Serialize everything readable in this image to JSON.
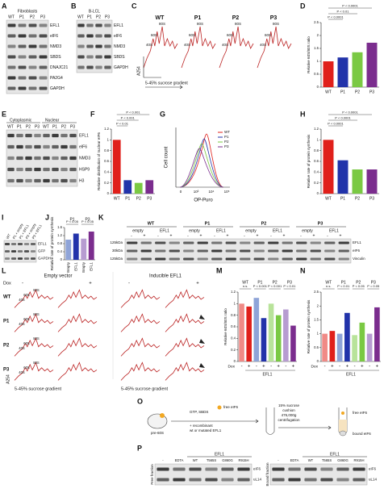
{
  "panel_letters": [
    "A",
    "B",
    "C",
    "D",
    "E",
    "F",
    "G",
    "H",
    "I",
    "J",
    "K",
    "L",
    "M",
    "N",
    "O",
    "P"
  ],
  "A": {
    "title": "Fibroblasts",
    "lanes": [
      "WT",
      "P1",
      "P2",
      "P3"
    ],
    "bands": [
      "EFL1",
      "eIF6",
      "NMD3",
      "SBDS",
      "DNAJC21",
      "PA2G4",
      "GAPDH"
    ]
  },
  "B": {
    "title": "B-LCL",
    "lanes": [
      "WT",
      "P1",
      "P2",
      "P3"
    ],
    "bands": [
      "EFL1",
      "eIF6",
      "NMD3",
      "SBDS",
      "GAPDH"
    ]
  },
  "C": {
    "samples": [
      "WT",
      "P1",
      "P2",
      "P3"
    ],
    "peaks": [
      "80S",
      "60S",
      "40S"
    ],
    "y_label": "A254",
    "x_label": "5-45% sucrose gradient"
  },
  "E": {
    "groups": [
      "Cytoplasmic",
      "Nuclear"
    ],
    "lanes": [
      "WT",
      "P1",
      "P2",
      "P3"
    ],
    "bands": [
      "EFL1",
      "eIF6",
      "NMD3",
      "HSP9",
      "H3"
    ]
  },
  "G": {
    "y_label": "Cell count",
    "x_label": "OP-Puro",
    "legend": [
      "WT",
      "P1",
      "P2",
      "P3"
    ],
    "xticks": [
      "0",
      "10³",
      "10⁴",
      "10⁵"
    ]
  },
  "I": {
    "lanes": [
      "WT",
      "P1 + empty",
      "P1 + EFL1",
      "P3 + empty",
      "P3 + EFL1"
    ],
    "bands": [
      "EFL1",
      "GFP",
      "GAPDH"
    ]
  },
  "K": {
    "groups": [
      "WT",
      "P1",
      "P2",
      "P3"
    ],
    "constructs": [
      "empty",
      "EFL1"
    ],
    "dox": [
      "-",
      "+"
    ],
    "markers": [
      "125kDa",
      "30kDa",
      "125kDa"
    ],
    "bands": [
      "EFL1",
      "eIF6",
      "Vinculin"
    ]
  },
  "L": {
    "columns": [
      "Empty vector",
      "Inducible EFL1"
    ],
    "dox_label": "Dox",
    "dox": [
      "-",
      "+"
    ],
    "rows": [
      "WT",
      "P1",
      "P2",
      "P3"
    ],
    "peaks": [
      "80S",
      "60S",
      "40S"
    ],
    "y_label": "A254",
    "x_label": "5-45% sucrose gradient"
  },
  "O": {
    "labels": [
      "free eIF6",
      "GTP, SBDS",
      "+ recombinant",
      "wt or mutated EFL1",
      "pre-60S",
      "15% sucrose",
      "cushion",
      "476,000g",
      "centrifugation",
      "free eIF6",
      "bound eIF6"
    ]
  },
  "P": {
    "title": "EFL1",
    "lanes": [
      "-",
      "EDTA",
      "WT",
      "T565S",
      "G860G",
      "R915H"
    ],
    "fractions": [
      "Free fraction",
      "Bound fraction"
    ],
    "bands": [
      "eIF6",
      "uL14"
    ]
  },
  "chart_data": [
    {
      "type": "bar",
      "y_label": "Relative 60S/80S ratio",
      "categories": [
        "WT",
        "P1",
        "P2",
        "P3"
      ],
      "values": [
        1.0,
        1.15,
        1.35,
        1.72
      ],
      "colors": [
        "#e0201b",
        "#2233aa",
        "#7ac943",
        "#7b2d8e"
      ],
      "ylim": [
        0,
        2.5
      ],
      "yticks": [
        0,
        0.5,
        1,
        1.5,
        2,
        2.5
      ],
      "annotations": [
        "P < 0.0001",
        "P < 0.01",
        "P < 0.0001"
      ]
    },
    {
      "type": "bar",
      "y_label": "Relative distribution of nuclear eIF6",
      "categories": [
        "WT",
        "P1",
        "P2",
        "P3"
      ],
      "values": [
        1.0,
        0.25,
        0.2,
        0.25
      ],
      "colors": [
        "#e0201b",
        "#2233aa",
        "#7ac943",
        "#7b2d8e"
      ],
      "ylim": [
        0,
        1.2
      ],
      "yticks": [
        0,
        0.2,
        0.4,
        0.6,
        0.8,
        1,
        1.2
      ],
      "annotations": [
        "P < 0.01",
        "P < 0.001",
        "P < 0.001"
      ]
    },
    {
      "type": "bar",
      "y_label": "Relative rate of protein synthesis",
      "categories": [
        "WT",
        "P1",
        "P2",
        "P3"
      ],
      "values": [
        1.0,
        0.62,
        0.45,
        0.45
      ],
      "colors": [
        "#e0201b",
        "#2233aa",
        "#7ac943",
        "#7b2d8e"
      ],
      "ylim": [
        0,
        1.2
      ],
      "yticks": [
        0,
        0.2,
        0.4,
        0.6,
        0.8,
        1,
        1.2
      ],
      "annotations": [
        "P < 0.0001",
        "P < 0.0001",
        "P < 0.0001"
      ]
    },
    {
      "type": "bar",
      "y_label": "Relative rate of protein synthesis",
      "categories": [
        "Empty",
        "EFL1",
        "Empty",
        "EFL1"
      ],
      "groups": [
        "P1",
        "P3"
      ],
      "values": [
        1.0,
        1.3,
        1.05,
        1.4
      ],
      "colors": [
        "#8fa4d8",
        "#2233aa",
        "#b79cd1",
        "#7b2d8e"
      ],
      "ylim": [
        0,
        1.6
      ],
      "yticks": [
        0,
        0.4,
        0.8,
        1.2,
        1.6
      ],
      "annotations": [
        "P < 0.05",
        "P < 0.05"
      ]
    },
    {
      "type": "bar",
      "y_label": "Relative 60S/80S ratio",
      "categories": [
        "-",
        "+",
        "-",
        "+",
        "-",
        "+",
        "-",
        "+"
      ],
      "groups": [
        "WT",
        "P1",
        "P2",
        "P3"
      ],
      "x_label": "Dox",
      "footer": "EFL1",
      "values": [
        1.0,
        0.95,
        1.1,
        0.75,
        1.0,
        0.8,
        0.9,
        0.62
      ],
      "colors": [
        "#f08a86",
        "#e0201b",
        "#8fa4d8",
        "#2233aa",
        "#b8e39a",
        "#7ac943",
        "#b79cd1",
        "#7b2d8e"
      ],
      "ylim": [
        0,
        1.2
      ],
      "yticks": [
        0,
        0.2,
        0.4,
        0.6,
        0.8,
        1,
        1.2
      ],
      "annotations": [
        "n.s.",
        "P < 0.001",
        "P < 0.001",
        "P < 0.01"
      ]
    },
    {
      "type": "bar",
      "y_label": "Relative rate of protein synthesis",
      "categories": [
        "-",
        "+",
        "-",
        "+",
        "-",
        "+",
        "-",
        "+"
      ],
      "groups": [
        "WT",
        "P1",
        "P2",
        "P3"
      ],
      "x_label": "Dox",
      "footer": "EFL1",
      "values": [
        1.0,
        1.1,
        1.0,
        1.75,
        0.95,
        1.4,
        1.0,
        1.95
      ],
      "colors": [
        "#f08a86",
        "#e0201b",
        "#8fa4d8",
        "#2233aa",
        "#b8e39a",
        "#7ac943",
        "#b79cd1",
        "#7b2d8e"
      ],
      "ylim": [
        0,
        2.5
      ],
      "yticks": [
        0,
        0.5,
        1,
        1.5,
        2,
        2.5
      ],
      "annotations": [
        "n.s.",
        "P < 0.01",
        "P < 0.05",
        "P = 0.05"
      ]
    }
  ]
}
